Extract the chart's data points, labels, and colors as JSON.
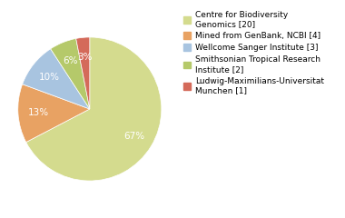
{
  "labels": [
    "Centre for Biodiversity\nGenomics [20]",
    "Mined from GenBank, NCBI [4]",
    "Wellcome Sanger Institute [3]",
    "Smithsonian Tropical Research\nInstitute [2]",
    "Ludwig-Maximilians-Universitat\nMunchen [1]"
  ],
  "values": [
    66,
    13,
    10,
    6,
    3
  ],
  "colors": [
    "#d4db8e",
    "#e8a263",
    "#a8c4e0",
    "#b5c96a",
    "#d46a5a"
  ],
  "startangle": 90,
  "background_color": "#ffffff",
  "text_color": "#ffffff",
  "pct_fontsize": 7.5,
  "legend_fontsize": 6.5
}
